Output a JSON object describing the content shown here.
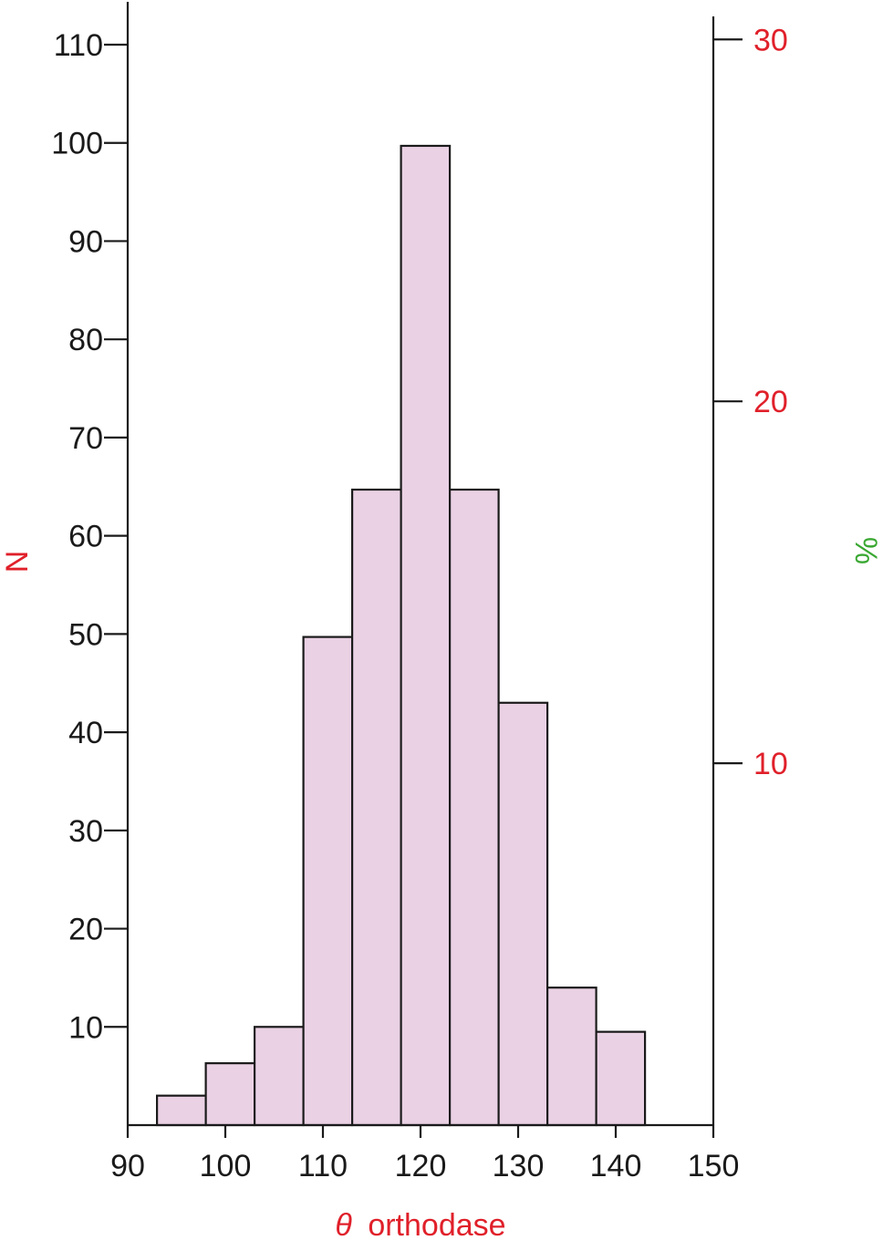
{
  "chart_data": {
    "type": "bar",
    "subtype": "histogram",
    "bins": [
      {
        "start": 93,
        "end": 98,
        "value": 3
      },
      {
        "start": 98,
        "end": 103,
        "value": 6.3
      },
      {
        "start": 103,
        "end": 108,
        "value": 10
      },
      {
        "start": 108,
        "end": 113,
        "value": 49.7
      },
      {
        "start": 113,
        "end": 118,
        "value": 64.7
      },
      {
        "start": 118,
        "end": 123,
        "value": 99.7
      },
      {
        "start": 123,
        "end": 128,
        "value": 64.7
      },
      {
        "start": 128,
        "end": 133,
        "value": 43
      },
      {
        "start": 133,
        "end": 138,
        "value": 14
      },
      {
        "start": 138,
        "end": 143,
        "value": 9.5
      }
    ],
    "xlabel_symbol": "θ",
    "xlabel": "orthodase",
    "ylabel": "N",
    "ylabel_right": "%",
    "xlim": [
      90,
      150
    ],
    "ylim": [
      0,
      110
    ],
    "x_ticks": [
      "90",
      "100",
      "110",
      "120",
      "130",
      "140",
      "150"
    ],
    "x_tick_values": [
      90,
      100,
      110,
      120,
      130,
      140,
      150
    ],
    "y_ticks": [
      "10",
      "20",
      "30",
      "40",
      "50",
      "60",
      "70",
      "80",
      "90",
      "100",
      "110"
    ],
    "y_tick_values": [
      10,
      20,
      30,
      40,
      50,
      60,
      70,
      80,
      90,
      100,
      110
    ],
    "y2_ticks": [
      "10",
      "20",
      "30"
    ],
    "y2_tick_values": [
      10,
      20,
      30
    ],
    "y2_scale_n_per_percent": 3.6844,
    "grid": false,
    "legend": "none",
    "colors": {
      "bar_fill": "#ead1e4",
      "bar_edge": "#1a1a1a",
      "axis": "#1a1a1a",
      "left_tick_text": "#1a1a1a",
      "right_tick_text": "#e0202a",
      "xlabel": "#e0202a",
      "ylabel": "#e0202a",
      "ylabel_right": "#3aa832"
    }
  }
}
